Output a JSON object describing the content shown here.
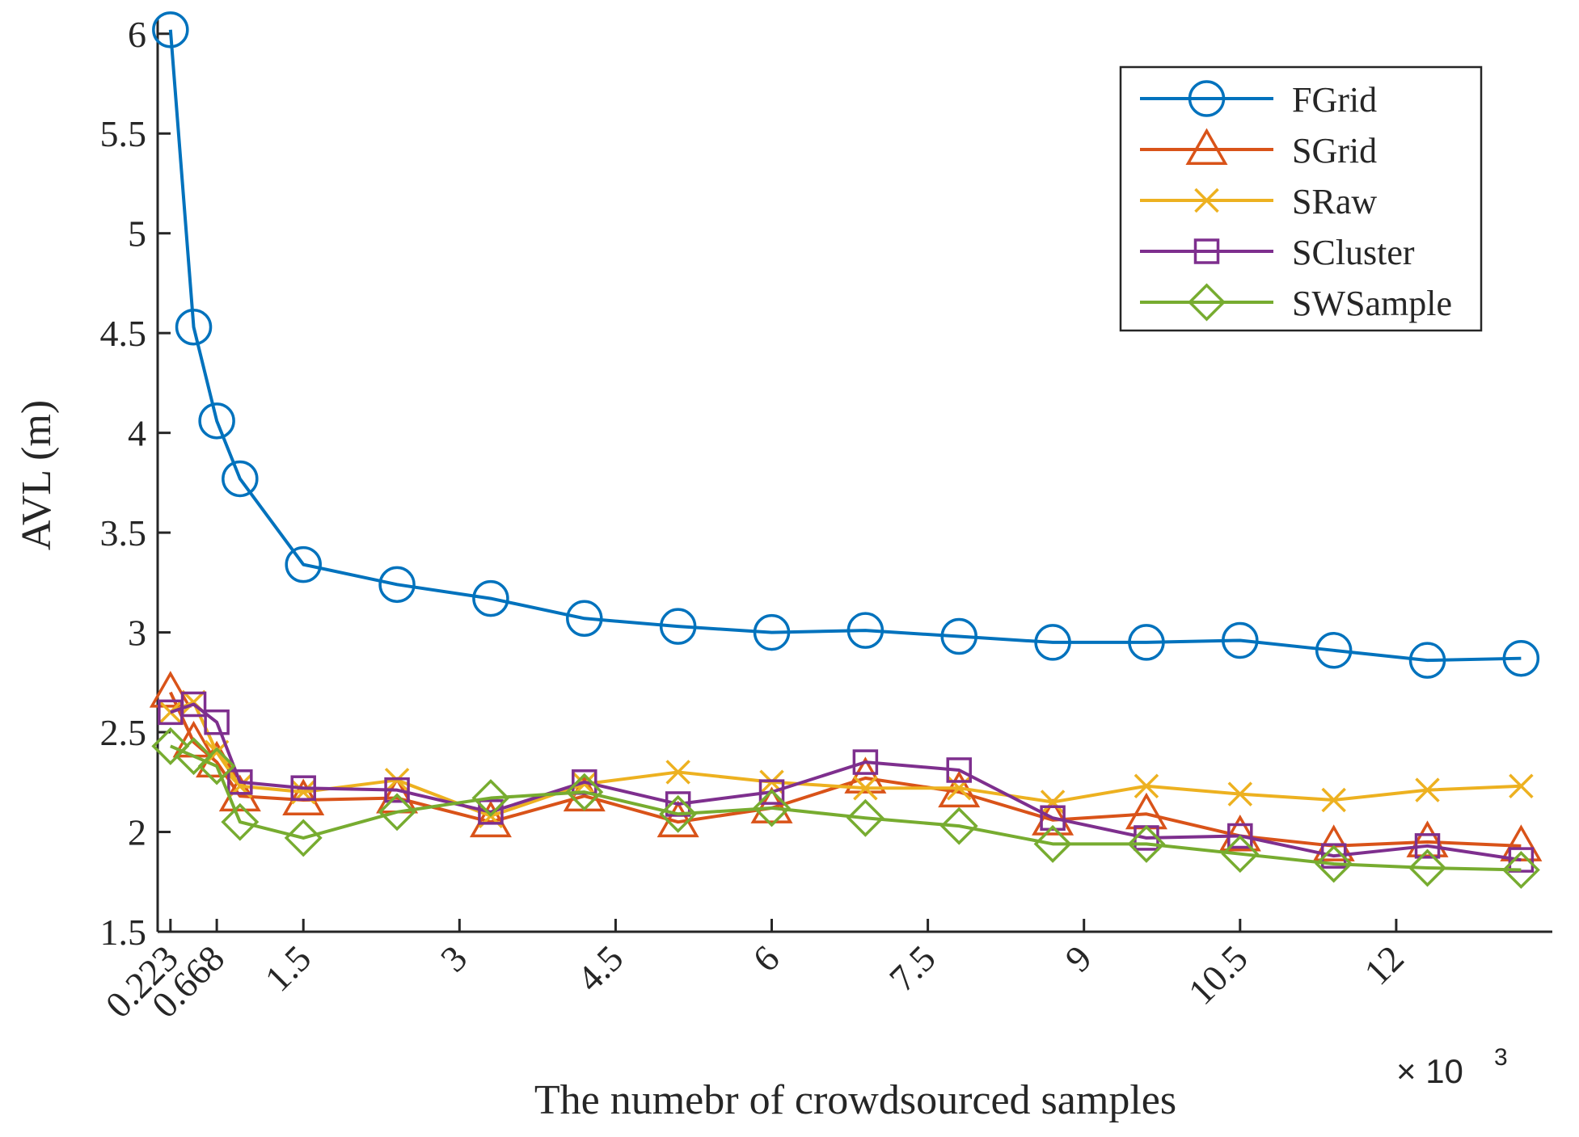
{
  "chart_data": {
    "type": "line",
    "title": "",
    "xlabel": "The numebr of crowdsourced samples",
    "ylabel": "AVL (m)",
    "x_multiplier_label": "× 10",
    "x_multiplier_exponent": "3",
    "xlim": [
      0.1,
      13.5
    ],
    "ylim": [
      1.5,
      6.08
    ],
    "grid": false,
    "legend_position": "top-right",
    "x": [
      0.223,
      0.446,
      0.668,
      0.891,
      1.5,
      2.4,
      3.3,
      4.2,
      5.1,
      6.0,
      6.9,
      7.8,
      8.7,
      9.6,
      10.5,
      11.4,
      12.3,
      13.2
    ],
    "x_ticks": [
      0.223,
      0.668,
      1.5,
      3,
      4.5,
      6,
      7.5,
      9,
      10.5,
      12
    ],
    "x_tick_labels": [
      "0.223",
      "0.668",
      "1.5",
      "3",
      "4.5",
      "6",
      "7.5",
      "9",
      "10.5",
      "12"
    ],
    "y_ticks": [
      1.5,
      2,
      2.5,
      3,
      3.5,
      4,
      4.5,
      5,
      5.5,
      6
    ],
    "y_tick_labels": [
      "1.5",
      "2",
      "2.5",
      "3",
      "3.5",
      "4",
      "4.5",
      "5",
      "5.5",
      "6"
    ],
    "series": [
      {
        "name": "FGrid",
        "color": "#0072BD",
        "marker": "circle",
        "values": [
          6.02,
          4.53,
          4.06,
          3.77,
          3.34,
          3.24,
          3.17,
          3.07,
          3.03,
          3.0,
          3.01,
          2.98,
          2.95,
          2.95,
          2.96,
          2.91,
          2.86,
          2.87
        ]
      },
      {
        "name": "SGrid",
        "color": "#D95319",
        "marker": "triangle",
        "values": [
          2.7,
          2.45,
          2.35,
          2.18,
          2.16,
          2.17,
          2.05,
          2.18,
          2.05,
          2.12,
          2.27,
          2.2,
          2.06,
          2.09,
          1.98,
          1.93,
          1.95,
          1.93
        ]
      },
      {
        "name": "SRaw",
        "color": "#EDB120",
        "marker": "x",
        "values": [
          2.6,
          2.65,
          2.4,
          2.23,
          2.2,
          2.26,
          2.08,
          2.24,
          2.3,
          2.25,
          2.22,
          2.22,
          2.15,
          2.23,
          2.19,
          2.16,
          2.21,
          2.23
        ]
      },
      {
        "name": "SCluster",
        "color": "#7E2F8E",
        "marker": "square",
        "values": [
          2.6,
          2.64,
          2.55,
          2.25,
          2.22,
          2.21,
          2.1,
          2.25,
          2.14,
          2.2,
          2.35,
          2.31,
          2.07,
          1.97,
          1.98,
          1.88,
          1.93,
          1.86
        ]
      },
      {
        "name": "SWSample",
        "color": "#77AC30",
        "marker": "diamond",
        "values": [
          2.43,
          2.38,
          2.33,
          2.05,
          1.97,
          2.1,
          2.17,
          2.2,
          2.09,
          2.12,
          2.07,
          2.03,
          1.94,
          1.94,
          1.89,
          1.84,
          1.82,
          1.81
        ]
      }
    ]
  }
}
